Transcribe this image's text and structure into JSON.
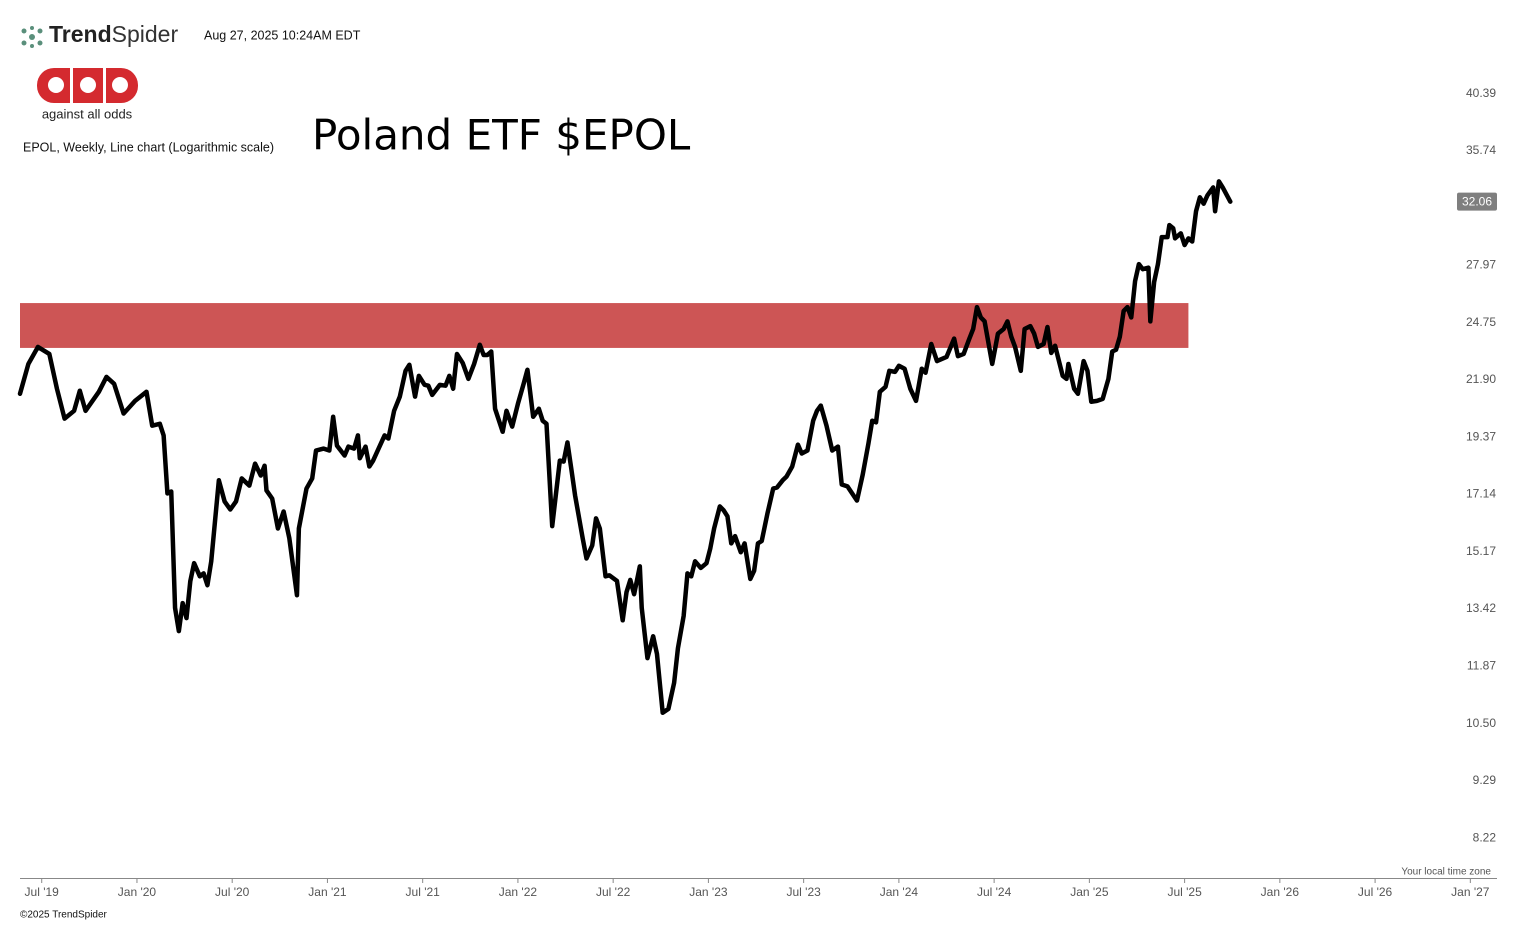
{
  "header": {
    "brand_bold": "Trend",
    "brand_light": "Spider",
    "timestamp": "Aug 27, 2025 10:24AM EDT",
    "logo_text": "against all odds",
    "footer": "©2025 TrendSpider",
    "timezone_note": "Your local time zone"
  },
  "chart_data": {
    "type": "line",
    "title": "Poland ETF $EPOL",
    "subtitle": "EPOL, Weekly, Line chart (Logarithmic scale)",
    "color": "#000000",
    "log_scale": true,
    "grid": false,
    "last_price": 32.06,
    "zone": {
      "low": 23.45,
      "high": 25.81,
      "start": 2019.386,
      "end": 2025.52,
      "color": "#cd5555"
    },
    "xlim": [
      2019.386,
      2027.14
    ],
    "ylim": [
      7.55,
      43.4
    ],
    "xticks": [
      {
        "value": 2019.5,
        "label": "Jul '19"
      },
      {
        "value": 2020,
        "label": "Jan '20"
      },
      {
        "value": 2020.5,
        "label": "Jul '20"
      },
      {
        "value": 2021,
        "label": "Jan '21"
      },
      {
        "value": 2021.5,
        "label": "Jul '21"
      },
      {
        "value": 2022,
        "label": "Jan '22"
      },
      {
        "value": 2022.5,
        "label": "Jul '22"
      },
      {
        "value": 2023,
        "label": "Jan '23"
      },
      {
        "value": 2023.5,
        "label": "Jul '23"
      },
      {
        "value": 2024,
        "label": "Jan '24"
      },
      {
        "value": 2024.5,
        "label": "Jul '24"
      },
      {
        "value": 2025,
        "label": "Jan '25"
      },
      {
        "value": 2025.5,
        "label": "Jul '25"
      },
      {
        "value": 2026,
        "label": "Jan '26"
      },
      {
        "value": 2026.5,
        "label": "Jul '26"
      },
      {
        "value": 2027,
        "label": "Jan '27"
      }
    ],
    "yticks": [
      40.39,
      35.74,
      27.97,
      24.75,
      {
        "value": 21.9,
        "label": "21.90"
      },
      19.37,
      17.14,
      15.17,
      13.42,
      11.87,
      {
        "value": 10.5,
        "label": "10.50"
      },
      9.29,
      8.22
    ],
    "x": [
      2019.386,
      2019.43,
      2019.48,
      2019.54,
      2019.58,
      2019.62,
      2019.67,
      2019.7,
      2019.73,
      2019.8,
      2019.84,
      2019.88,
      2019.93,
      2019.99,
      2020.05,
      2020.08,
      2020.12,
      2020.14,
      2020.16,
      2020.18,
      2020.2,
      2020.22,
      2020.24,
      2020.26,
      2020.28,
      2020.3,
      2020.33,
      2020.35,
      2020.37,
      2020.39,
      2020.43,
      2020.46,
      2020.49,
      2020.52,
      2020.55,
      2020.59,
      2020.62,
      2020.65,
      2020.67,
      2020.68,
      2020.71,
      2020.74,
      2020.77,
      2020.8,
      2020.84,
      2020.85,
      2020.89,
      2020.92,
      2020.94,
      2020.98,
      2021.01,
      2021.03,
      2021.05,
      2021.09,
      2021.11,
      2021.14,
      2021.16,
      2021.17,
      2021.2,
      2021.22,
      2021.24,
      2021.3,
      2021.32,
      2021.35,
      2021.38,
      2021.41,
      2021.43,
      2021.46,
      2021.48,
      2021.51,
      2021.53,
      2021.55,
      2021.59,
      2021.62,
      2021.64,
      2021.66,
      2021.68,
      2021.71,
      2021.74,
      2021.77,
      2021.8,
      2021.82,
      2021.84,
      2021.86,
      2021.88,
      2021.92,
      2021.94,
      2021.97,
      2022.0,
      2022.03,
      2022.05,
      2022.08,
      2022.11,
      2022.13,
      2022.15,
      2022.18,
      2022.22,
      2022.24,
      2022.26,
      2022.28,
      2022.3,
      2022.34,
      2022.36,
      2022.39,
      2022.41,
      2022.43,
      2022.46,
      2022.48,
      2022.52,
      2022.55,
      2022.57,
      2022.59,
      2022.61,
      2022.64,
      2022.65,
      2022.68,
      2022.71,
      2022.73,
      2022.76,
      2022.79,
      2022.82,
      2022.84,
      2022.87,
      2022.89,
      2022.91,
      2022.93,
      2022.96,
      2022.99,
      2023.01,
      2023.03,
      2023.06,
      2023.08,
      2023.1,
      2023.12,
      2023.14,
      2023.17,
      2023.19,
      2023.22,
      2023.24,
      2023.26,
      2023.28,
      2023.31,
      2023.34,
      2023.36,
      2023.39,
      2023.41,
      2023.44,
      2023.47,
      2023.49,
      2023.52,
      2023.55,
      2023.57,
      2023.59,
      2023.62,
      2023.65,
      2023.68,
      2023.7,
      2023.73,
      2023.78,
      2023.81,
      2023.84,
      2023.86,
      2023.88,
      2023.9,
      2023.93,
      2023.95,
      2023.98,
      2024.0,
      2024.03,
      2024.06,
      2024.09,
      2024.12,
      2024.14,
      2024.17,
      2024.2,
      2024.25,
      2024.29,
      2024.31,
      2024.34,
      2024.37,
      2024.39,
      2024.41,
      2024.43,
      2024.45,
      2024.49,
      2024.52,
      2024.55,
      2024.57,
      2024.59,
      2024.61,
      2024.64,
      2024.66,
      2024.69,
      2024.71,
      2024.73,
      2024.76,
      2024.78,
      2024.8,
      2024.82,
      2024.86,
      2024.88,
      2024.89,
      2024.92,
      2024.94,
      2024.97,
      2024.99,
      2025.01,
      2025.04,
      2025.07,
      2025.1,
      2025.12,
      2025.14,
      2025.16,
      2025.18,
      2025.2,
      2025.22,
      2025.24,
      2025.26,
      2025.28,
      2025.31,
      2025.32,
      2025.34,
      2025.36,
      2025.38,
      2025.41,
      2025.42,
      2025.44,
      2025.45,
      2025.48,
      2025.5,
      2025.52,
      2025.54,
      2025.56,
      2025.58,
      2025.6,
      2025.62,
      2025.65,
      2025.66,
      2025.68,
      2025.7,
      2025.74
    ],
    "values": [
      21.26,
      22.66,
      23.5,
      23.15,
      21.49,
      20.16,
      20.5,
      21.4,
      20.5,
      21.35,
      22.04,
      21.72,
      20.38,
      20.94,
      21.35,
      19.86,
      19.94,
      19.45,
      17.18,
      17.25,
      13.45,
      12.8,
      13.59,
      13.16,
      14.24,
      14.8,
      14.39,
      14.48,
      14.12,
      14.86,
      17.67,
      16.89,
      16.6,
      16.89,
      17.74,
      17.47,
      18.31,
      17.85,
      18.23,
      17.29,
      16.99,
      15.94,
      16.53,
      15.61,
      13.82,
      15.94,
      17.36,
      17.74,
      18.83,
      18.91,
      18.83,
      20.24,
      19.03,
      18.63,
      18.99,
      18.91,
      19.45,
      18.52,
      18.99,
      18.2,
      18.43,
      19.45,
      19.32,
      20.5,
      21.13,
      22.33,
      22.62,
      21.13,
      22.09,
      21.67,
      21.63,
      21.21,
      21.67,
      21.63,
      22.09,
      21.49,
      23.15,
      22.71,
      21.95,
      22.66,
      23.61,
      23.1,
      23.1,
      23.27,
      20.59,
      19.6,
      20.5,
      19.82,
      20.81,
      21.72,
      22.38,
      20.24,
      20.59,
      20.07,
      19.94,
      16.02,
      18.43,
      18.39,
      19.16,
      18.12,
      17.11,
      15.61,
      14.95,
      15.37,
      16.29,
      15.94,
      14.39,
      14.42,
      14.25,
      13.1,
      13.91,
      14.28,
      13.85,
      14.7,
      13.45,
      12.08,
      12.66,
      12.19,
      10.75,
      10.84,
      11.46,
      12.34,
      13.22,
      14.48,
      14.39,
      14.86,
      14.65,
      14.8,
      15.28,
      15.94,
      16.71,
      16.57,
      16.36,
      15.44,
      15.68,
      15.15,
      15.44,
      14.31,
      14.56,
      15.44,
      15.52,
      16.46,
      17.36,
      17.4,
      17.67,
      17.81,
      18.2,
      19.07,
      18.71,
      18.83,
      20.07,
      20.5,
      20.73,
      19.86,
      18.83,
      18.99,
      17.51,
      17.44,
      16.92,
      17.88,
      19.11,
      20.07,
      20.0,
      21.35,
      21.58,
      22.33,
      22.28,
      22.57,
      22.43,
      21.49,
      20.94,
      22.43,
      22.24,
      23.65,
      22.8,
      23.0,
      23.92,
      23.04,
      23.15,
      23.92,
      24.42,
      25.59,
      25.03,
      24.82,
      22.66,
      24.18,
      24.42,
      24.82,
      24.02,
      23.5,
      22.33,
      24.42,
      24.57,
      24.18,
      23.5,
      23.65,
      24.52,
      23.2,
      23.56,
      22.09,
      21.95,
      22.66,
      21.49,
      21.26,
      22.8,
      22.33,
      20.9,
      20.94,
      21.03,
      21.95,
      23.27,
      23.36,
      24.02,
      25.38,
      25.59,
      25.03,
      27.05,
      28.05,
      27.75,
      27.84,
      24.82,
      27.0,
      28.05,
      29.72,
      29.72,
      30.49,
      30.29,
      29.64,
      29.96,
      29.22,
      29.64,
      29.44,
      31.41,
      32.36,
      31.92,
      32.5,
      33.05,
      31.41,
      33.48,
      33.05,
      32.06
    ]
  }
}
